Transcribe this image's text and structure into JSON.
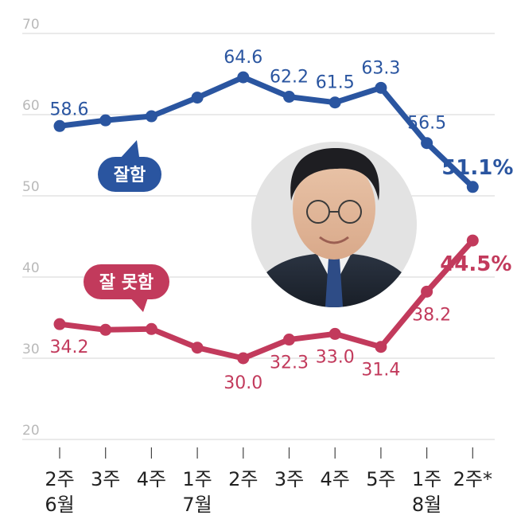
{
  "chart_data": {
    "type": "line",
    "categories": [
      {
        "week": "2주",
        "month": "6월"
      },
      {
        "week": "3주",
        "month": ""
      },
      {
        "week": "4주",
        "month": ""
      },
      {
        "week": "1주",
        "month": "7월"
      },
      {
        "week": "2주",
        "month": ""
      },
      {
        "week": "3주",
        "month": ""
      },
      {
        "week": "4주",
        "month": ""
      },
      {
        "week": "5주",
        "month": ""
      },
      {
        "week": "1주",
        "month": "8월"
      },
      {
        "week": "2주*",
        "month": ""
      }
    ],
    "series": [
      {
        "name": "잘함",
        "values": [
          58.6,
          59.3,
          59.8,
          62.1,
          64.6,
          62.2,
          61.5,
          63.3,
          56.5,
          51.1
        ],
        "labels": [
          "58.6",
          "",
          "",
          "",
          "64.6",
          "62.2",
          "61.5",
          "63.3",
          "56.5",
          "51.1%"
        ],
        "color": "#2a55a0"
      },
      {
        "name": "잘 못함",
        "values": [
          34.2,
          33.5,
          33.6,
          31.3,
          30.0,
          32.3,
          33.0,
          31.4,
          38.2,
          44.5
        ],
        "labels": [
          "34.2",
          "",
          "",
          "",
          "30.0",
          "32.3",
          "33.0",
          "31.4",
          "38.2",
          "44.5%"
        ],
        "color": "#c23a5c"
      }
    ],
    "ylim": [
      20,
      70
    ],
    "yticks": [
      "20",
      "30",
      "40",
      "50",
      "60",
      "70"
    ],
    "grid": true
  }
}
